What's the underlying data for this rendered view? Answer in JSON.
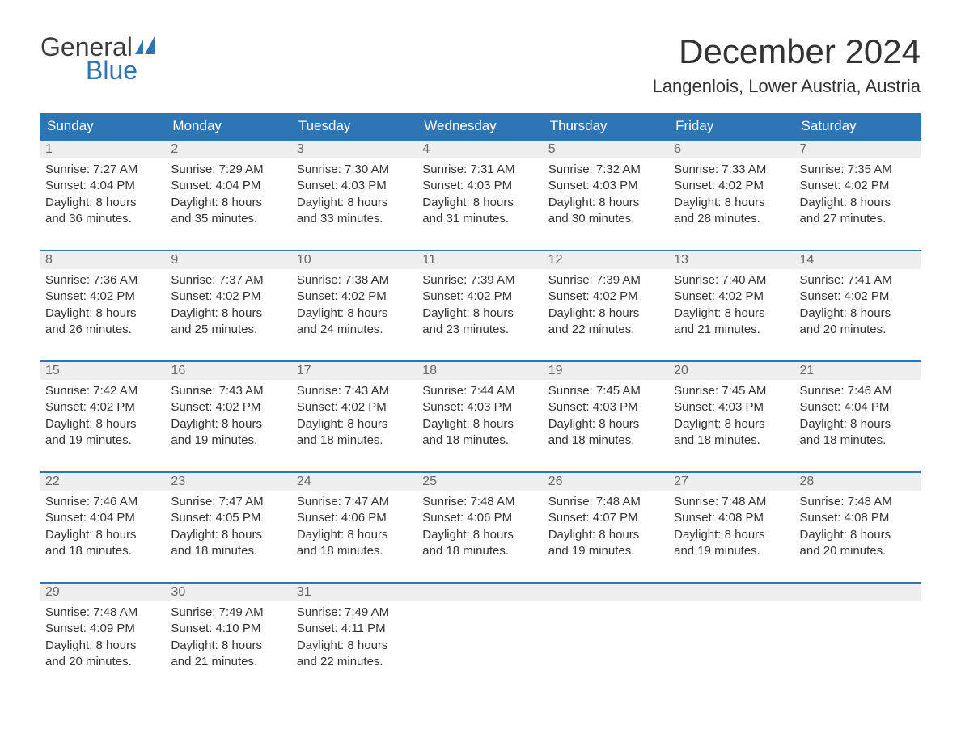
{
  "brand": {
    "word1": "General",
    "word2": "Blue",
    "word1_color": "#3b3b3b",
    "word2_color": "#2e75b6",
    "flag_color": "#2e75b6"
  },
  "title": "December 2024",
  "location": "Langenlois, Lower Austria, Austria",
  "colors": {
    "header_bg": "#2e75b6",
    "header_text": "#ffffff",
    "week_border": "#2e75b6",
    "daynum_bg": "#eeeeee",
    "daynum_text": "#666666",
    "body_text": "#333333",
    "page_bg": "#ffffff"
  },
  "typography": {
    "title_fontsize": 42,
    "location_fontsize": 22,
    "header_fontsize": 17,
    "daynum_fontsize": 16,
    "body_fontsize": 15
  },
  "day_names": [
    "Sunday",
    "Monday",
    "Tuesday",
    "Wednesday",
    "Thursday",
    "Friday",
    "Saturday"
  ],
  "weeks": [
    [
      {
        "n": "1",
        "sunrise": "Sunrise: 7:27 AM",
        "sunset": "Sunset: 4:04 PM",
        "dl1": "Daylight: 8 hours",
        "dl2": "and 36 minutes."
      },
      {
        "n": "2",
        "sunrise": "Sunrise: 7:29 AM",
        "sunset": "Sunset: 4:04 PM",
        "dl1": "Daylight: 8 hours",
        "dl2": "and 35 minutes."
      },
      {
        "n": "3",
        "sunrise": "Sunrise: 7:30 AM",
        "sunset": "Sunset: 4:03 PM",
        "dl1": "Daylight: 8 hours",
        "dl2": "and 33 minutes."
      },
      {
        "n": "4",
        "sunrise": "Sunrise: 7:31 AM",
        "sunset": "Sunset: 4:03 PM",
        "dl1": "Daylight: 8 hours",
        "dl2": "and 31 minutes."
      },
      {
        "n": "5",
        "sunrise": "Sunrise: 7:32 AM",
        "sunset": "Sunset: 4:03 PM",
        "dl1": "Daylight: 8 hours",
        "dl2": "and 30 minutes."
      },
      {
        "n": "6",
        "sunrise": "Sunrise: 7:33 AM",
        "sunset": "Sunset: 4:02 PM",
        "dl1": "Daylight: 8 hours",
        "dl2": "and 28 minutes."
      },
      {
        "n": "7",
        "sunrise": "Sunrise: 7:35 AM",
        "sunset": "Sunset: 4:02 PM",
        "dl1": "Daylight: 8 hours",
        "dl2": "and 27 minutes."
      }
    ],
    [
      {
        "n": "8",
        "sunrise": "Sunrise: 7:36 AM",
        "sunset": "Sunset: 4:02 PM",
        "dl1": "Daylight: 8 hours",
        "dl2": "and 26 minutes."
      },
      {
        "n": "9",
        "sunrise": "Sunrise: 7:37 AM",
        "sunset": "Sunset: 4:02 PM",
        "dl1": "Daylight: 8 hours",
        "dl2": "and 25 minutes."
      },
      {
        "n": "10",
        "sunrise": "Sunrise: 7:38 AM",
        "sunset": "Sunset: 4:02 PM",
        "dl1": "Daylight: 8 hours",
        "dl2": "and 24 minutes."
      },
      {
        "n": "11",
        "sunrise": "Sunrise: 7:39 AM",
        "sunset": "Sunset: 4:02 PM",
        "dl1": "Daylight: 8 hours",
        "dl2": "and 23 minutes."
      },
      {
        "n": "12",
        "sunrise": "Sunrise: 7:39 AM",
        "sunset": "Sunset: 4:02 PM",
        "dl1": "Daylight: 8 hours",
        "dl2": "and 22 minutes."
      },
      {
        "n": "13",
        "sunrise": "Sunrise: 7:40 AM",
        "sunset": "Sunset: 4:02 PM",
        "dl1": "Daylight: 8 hours",
        "dl2": "and 21 minutes."
      },
      {
        "n": "14",
        "sunrise": "Sunrise: 7:41 AM",
        "sunset": "Sunset: 4:02 PM",
        "dl1": "Daylight: 8 hours",
        "dl2": "and 20 minutes."
      }
    ],
    [
      {
        "n": "15",
        "sunrise": "Sunrise: 7:42 AM",
        "sunset": "Sunset: 4:02 PM",
        "dl1": "Daylight: 8 hours",
        "dl2": "and 19 minutes."
      },
      {
        "n": "16",
        "sunrise": "Sunrise: 7:43 AM",
        "sunset": "Sunset: 4:02 PM",
        "dl1": "Daylight: 8 hours",
        "dl2": "and 19 minutes."
      },
      {
        "n": "17",
        "sunrise": "Sunrise: 7:43 AM",
        "sunset": "Sunset: 4:02 PM",
        "dl1": "Daylight: 8 hours",
        "dl2": "and 18 minutes."
      },
      {
        "n": "18",
        "sunrise": "Sunrise: 7:44 AM",
        "sunset": "Sunset: 4:03 PM",
        "dl1": "Daylight: 8 hours",
        "dl2": "and 18 minutes."
      },
      {
        "n": "19",
        "sunrise": "Sunrise: 7:45 AM",
        "sunset": "Sunset: 4:03 PM",
        "dl1": "Daylight: 8 hours",
        "dl2": "and 18 minutes."
      },
      {
        "n": "20",
        "sunrise": "Sunrise: 7:45 AM",
        "sunset": "Sunset: 4:03 PM",
        "dl1": "Daylight: 8 hours",
        "dl2": "and 18 minutes."
      },
      {
        "n": "21",
        "sunrise": "Sunrise: 7:46 AM",
        "sunset": "Sunset: 4:04 PM",
        "dl1": "Daylight: 8 hours",
        "dl2": "and 18 minutes."
      }
    ],
    [
      {
        "n": "22",
        "sunrise": "Sunrise: 7:46 AM",
        "sunset": "Sunset: 4:04 PM",
        "dl1": "Daylight: 8 hours",
        "dl2": "and 18 minutes."
      },
      {
        "n": "23",
        "sunrise": "Sunrise: 7:47 AM",
        "sunset": "Sunset: 4:05 PM",
        "dl1": "Daylight: 8 hours",
        "dl2": "and 18 minutes."
      },
      {
        "n": "24",
        "sunrise": "Sunrise: 7:47 AM",
        "sunset": "Sunset: 4:06 PM",
        "dl1": "Daylight: 8 hours",
        "dl2": "and 18 minutes."
      },
      {
        "n": "25",
        "sunrise": "Sunrise: 7:48 AM",
        "sunset": "Sunset: 4:06 PM",
        "dl1": "Daylight: 8 hours",
        "dl2": "and 18 minutes."
      },
      {
        "n": "26",
        "sunrise": "Sunrise: 7:48 AM",
        "sunset": "Sunset: 4:07 PM",
        "dl1": "Daylight: 8 hours",
        "dl2": "and 19 minutes."
      },
      {
        "n": "27",
        "sunrise": "Sunrise: 7:48 AM",
        "sunset": "Sunset: 4:08 PM",
        "dl1": "Daylight: 8 hours",
        "dl2": "and 19 minutes."
      },
      {
        "n": "28",
        "sunrise": "Sunrise: 7:48 AM",
        "sunset": "Sunset: 4:08 PM",
        "dl1": "Daylight: 8 hours",
        "dl2": "and 20 minutes."
      }
    ],
    [
      {
        "n": "29",
        "sunrise": "Sunrise: 7:48 AM",
        "sunset": "Sunset: 4:09 PM",
        "dl1": "Daylight: 8 hours",
        "dl2": "and 20 minutes."
      },
      {
        "n": "30",
        "sunrise": "Sunrise: 7:49 AM",
        "sunset": "Sunset: 4:10 PM",
        "dl1": "Daylight: 8 hours",
        "dl2": "and 21 minutes."
      },
      {
        "n": "31",
        "sunrise": "Sunrise: 7:49 AM",
        "sunset": "Sunset: 4:11 PM",
        "dl1": "Daylight: 8 hours",
        "dl2": "and 22 minutes."
      },
      {
        "empty": true
      },
      {
        "empty": true
      },
      {
        "empty": true
      },
      {
        "empty": true
      }
    ]
  ]
}
